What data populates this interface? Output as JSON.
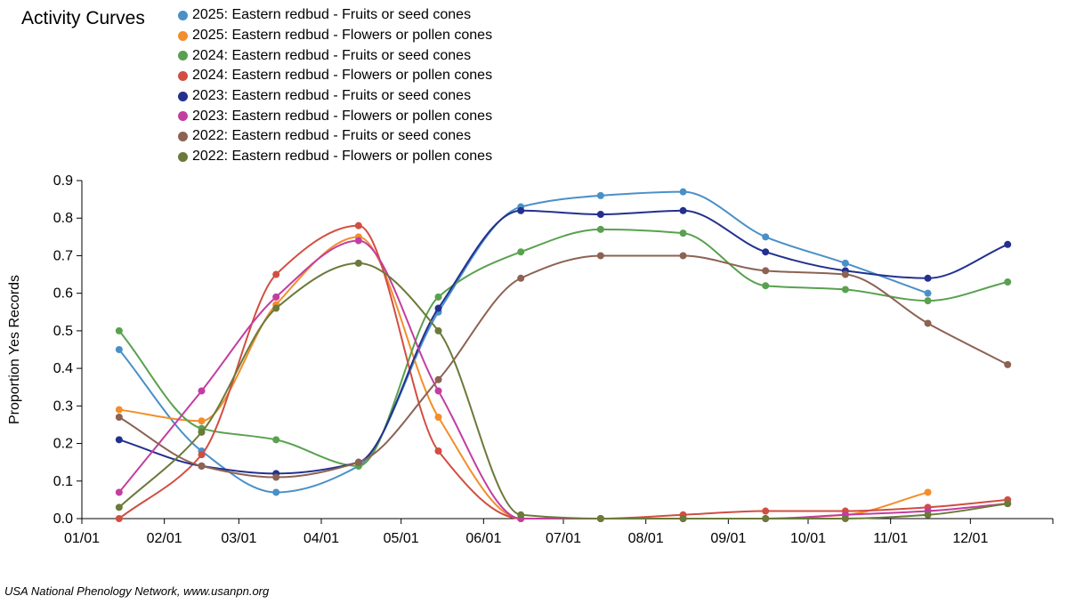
{
  "chart_data": {
    "type": "line",
    "title": "Activity Curves",
    "xlabel": "",
    "ylabel": "Proportion Yes Records",
    "ylim": [
      0,
      0.9
    ],
    "yticks": [
      "0.0",
      "0.1",
      "0.2",
      "0.3",
      "0.4",
      "0.5",
      "0.6",
      "0.7",
      "0.8",
      "0.9"
    ],
    "xticks": [
      "01/01",
      "02/01",
      "03/01",
      "04/01",
      "05/01",
      "06/01",
      "07/01",
      "08/01",
      "09/01",
      "10/01",
      "11/01",
      "12/01"
    ],
    "x": [
      "01/15",
      "02/15",
      "03/15",
      "04/15",
      "05/15",
      "06/15",
      "07/15",
      "08/15",
      "09/15",
      "10/15",
      "11/15",
      "12/15"
    ],
    "legend_position": "top",
    "series": [
      {
        "name": "2025: Eastern redbud - Fruits or seed cones",
        "color": "#4a90c8",
        "values": [
          0.45,
          0.18,
          0.07,
          0.14,
          0.55,
          0.83,
          0.86,
          0.87,
          0.75,
          0.68,
          0.6,
          null
        ]
      },
      {
        "name": "2025: Eastern redbud - Flowers or pollen cones",
        "color": "#f28e2b",
        "values": [
          0.29,
          0.26,
          0.57,
          0.75,
          0.27,
          0.0,
          0.0,
          0.0,
          0.0,
          0.01,
          0.07,
          null
        ]
      },
      {
        "name": "2024: Eastern redbud - Fruits or seed cones",
        "color": "#59a14f",
        "values": [
          0.5,
          0.24,
          0.21,
          0.14,
          0.59,
          0.71,
          0.77,
          0.76,
          0.62,
          0.61,
          0.58,
          0.63
        ]
      },
      {
        "name": "2024: Eastern redbud - Flowers or pollen cones",
        "color": "#d14e41",
        "values": [
          0.0,
          0.17,
          0.65,
          0.78,
          0.18,
          0.0,
          0.0,
          0.01,
          0.02,
          0.02,
          0.03,
          0.05
        ]
      },
      {
        "name": "2023: Eastern redbud - Fruits or seed cones",
        "color": "#23308f",
        "values": [
          0.21,
          0.14,
          0.12,
          0.15,
          0.56,
          0.82,
          0.81,
          0.82,
          0.71,
          0.66,
          0.64,
          0.73
        ]
      },
      {
        "name": "2023: Eastern redbud - Flowers or pollen cones",
        "color": "#c23ea0",
        "values": [
          0.07,
          0.34,
          0.59,
          0.74,
          0.34,
          0.0,
          0.0,
          0.0,
          0.0,
          0.01,
          0.02,
          0.04
        ]
      },
      {
        "name": "2022: Eastern redbud - Fruits or seed cones",
        "color": "#8c6253",
        "values": [
          0.27,
          0.14,
          0.11,
          0.15,
          0.37,
          0.64,
          0.7,
          0.7,
          0.66,
          0.65,
          0.52,
          0.41
        ]
      },
      {
        "name": "2022: Eastern redbud - Flowers or pollen cones",
        "color": "#6b7a3a",
        "values": [
          0.03,
          0.23,
          0.56,
          0.68,
          0.5,
          0.01,
          0.0,
          0.0,
          0.0,
          0.0,
          0.01,
          0.04
        ]
      }
    ]
  },
  "footer": {
    "credit": "USA National Phenology Network, www.usanpn.org"
  }
}
